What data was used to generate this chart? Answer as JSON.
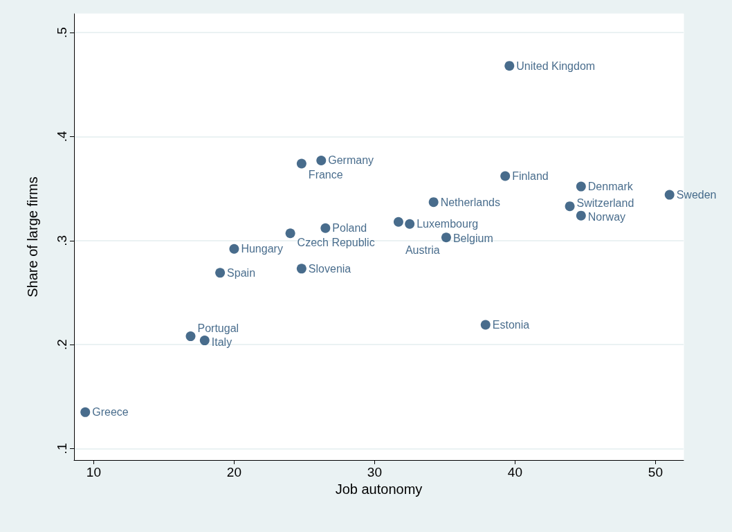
{
  "chart_data": {
    "type": "scatter",
    "xlabel": "Job autonomy",
    "ylabel": "Share of large firms",
    "x": [
      39.6,
      26.2,
      24.8,
      39.3,
      44.7,
      51.0,
      43.9,
      34.2,
      44.7,
      31.7,
      32.5,
      26.5,
      24.0,
      35.1,
      20.0,
      19.0,
      24.8,
      37.9,
      16.9,
      17.9,
      9.4
    ],
    "values": [
      0.468,
      0.377,
      0.374,
      0.362,
      0.352,
      0.344,
      0.333,
      0.337,
      0.324,
      0.318,
      0.316,
      0.312,
      0.307,
      0.303,
      0.292,
      0.269,
      0.273,
      0.219,
      0.208,
      0.204,
      0.135
    ],
    "color": "#1a476f",
    "marker": "circle",
    "grid": "y",
    "xlim": [
      8.6,
      52
    ],
    "xticks": [
      10,
      20,
      30,
      40,
      50
    ],
    "ylim": [
      0.089,
      0.518
    ],
    "yticks": [
      {
        "value": 0.1,
        "label": ".1"
      },
      {
        "value": 0.2,
        "label": ".2"
      },
      {
        "value": 0.3,
        "label": ".3"
      },
      {
        "value": 0.4,
        "label": ".4"
      },
      {
        "value": 0.5,
        "label": ".5"
      }
    ],
    "annotations": [
      {
        "text": "United Kingdom",
        "x": 39.6,
        "y": 0.468
      },
      {
        "text": "Germany",
        "x": 26.2,
        "y": 0.377
      },
      {
        "text": "France",
        "x": 24.8,
        "y": 0.374
      },
      {
        "text": "Finland",
        "x": 39.3,
        "y": 0.362
      },
      {
        "text": "Denmark",
        "x": 44.7,
        "y": 0.352
      },
      {
        "text": "Sweden",
        "x": 51.0,
        "y": 0.344
      },
      {
        "text": "Switzerland",
        "x": 43.9,
        "y": 0.333
      },
      {
        "text": "Netherlands",
        "x": 34.2,
        "y": 0.337
      },
      {
        "text": "Norway",
        "x": 44.7,
        "y": 0.324
      },
      {
        "text": "Austria",
        "x": 31.7,
        "y": 0.318
      },
      {
        "text": "Luxembourg",
        "x": 32.5,
        "y": 0.316
      },
      {
        "text": "Poland",
        "x": 26.5,
        "y": 0.312
      },
      {
        "text": "Czech Republic",
        "x": 24.0,
        "y": 0.307
      },
      {
        "text": "Belgium",
        "x": 35.1,
        "y": 0.303
      },
      {
        "text": "Hungary",
        "x": 20.0,
        "y": 0.292
      },
      {
        "text": "Spain",
        "x": 19.0,
        "y": 0.269
      },
      {
        "text": "Slovenia",
        "x": 24.8,
        "y": 0.273
      },
      {
        "text": "Estonia",
        "x": 37.9,
        "y": 0.219
      },
      {
        "text": "Portugal",
        "x": 16.9,
        "y": 0.208
      },
      {
        "text": "Italy",
        "x": 17.9,
        "y": 0.204
      },
      {
        "text": "Greece",
        "x": 9.4,
        "y": 0.135
      }
    ]
  }
}
